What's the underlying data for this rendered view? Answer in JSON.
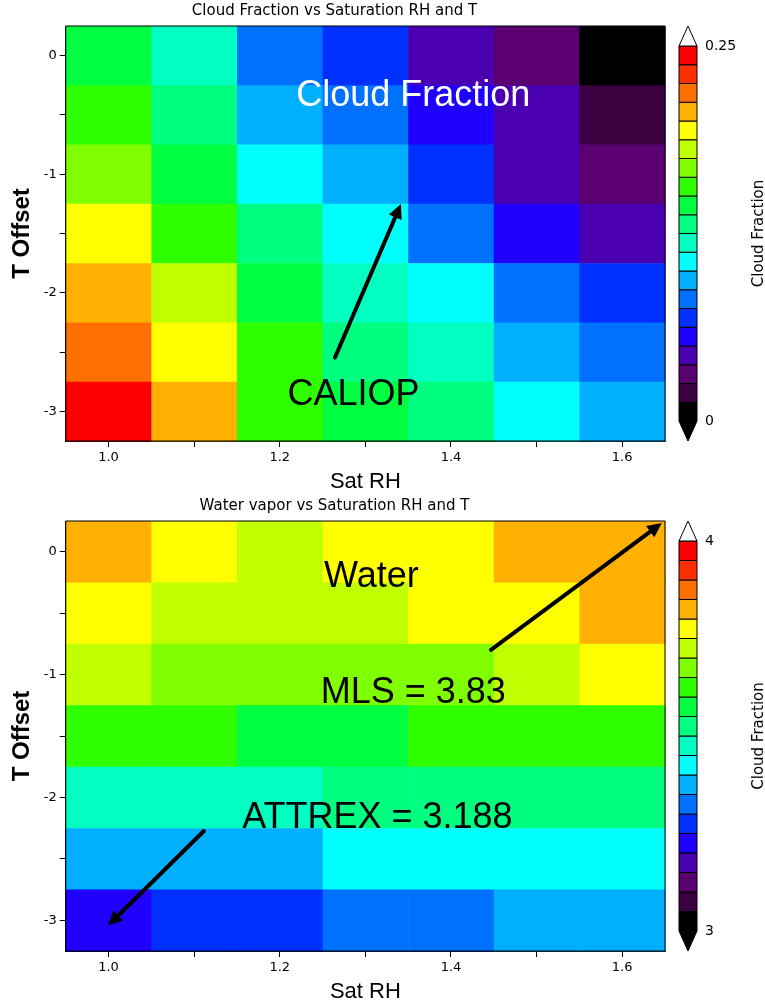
{
  "chart_data": [
    {
      "type": "heatmap",
      "title": "Cloud Fraction vs Saturation RH and T",
      "xlabel": "Sat RH",
      "ylabel": "T Offset",
      "clabel": "Cloud Fraction",
      "annotations": [
        "Cloud Fraction",
        "CALIOP"
      ],
      "categories": [
        "1.0",
        null,
        "1.2",
        null,
        "1.4",
        null,
        "1.6"
      ],
      "y_categories": [
        "0",
        null,
        "-1",
        null,
        "-2",
        null,
        "-3"
      ],
      "clim": [
        0,
        0.25
      ],
      "cticks": [
        0,
        0.25
      ],
      "cells": [
        [
          0.14375,
          0.11875,
          0.08125,
          0.06875,
          0.04375,
          0.03125,
          0.00625
        ],
        [
          0.15625,
          0.13125,
          0.09375,
          0.08125,
          0.05625,
          0.04375,
          0.01875
        ],
        [
          0.16875,
          0.14375,
          0.10625,
          0.09375,
          0.06875,
          0.04375,
          0.03125
        ],
        [
          0.19375,
          0.15625,
          0.13125,
          0.10625,
          0.08125,
          0.05625,
          0.04375
        ],
        [
          0.20625,
          0.18125,
          0.14375,
          0.11875,
          0.10625,
          0.08125,
          0.06875
        ],
        [
          0.21875,
          0.19375,
          0.15625,
          0.13125,
          0.11875,
          0.09375,
          0.08125
        ],
        [
          0.24375,
          0.20625,
          0.15625,
          0.14375,
          0.13125,
          0.10625,
          0.09375
        ]
      ]
    },
    {
      "type": "heatmap",
      "title": "Water vapor vs Saturation RH and T",
      "xlabel": "Sat RH",
      "ylabel": "T Offset",
      "clabel": "Cloud Fraction",
      "annotations": [
        "Water",
        "MLS = 3.83",
        "ATTREX = 3.188"
      ],
      "categories": [
        "1.0",
        null,
        "1.2",
        null,
        "1.4",
        null,
        "1.6"
      ],
      "y_categories": [
        "0",
        null,
        "-1",
        null,
        "-2",
        null,
        "-3"
      ],
      "clim": [
        3,
        4
      ],
      "cticks": [
        3,
        4
      ],
      "cells": [
        [
          3.825,
          3.775,
          3.725,
          3.775,
          3.775,
          3.825,
          3.825
        ],
        [
          3.775,
          3.725,
          3.725,
          3.725,
          3.775,
          3.775,
          3.825
        ],
        [
          3.725,
          3.675,
          3.675,
          3.675,
          3.675,
          3.725,
          3.775
        ],
        [
          3.625,
          3.625,
          3.575,
          3.575,
          3.625,
          3.625,
          3.625
        ],
        [
          3.475,
          3.475,
          3.475,
          3.525,
          3.525,
          3.525,
          3.525
        ],
        [
          3.375,
          3.375,
          3.375,
          3.425,
          3.425,
          3.425,
          3.425
        ],
        [
          3.225,
          3.275,
          3.275,
          3.325,
          3.325,
          3.375,
          3.375
        ]
      ]
    }
  ]
}
